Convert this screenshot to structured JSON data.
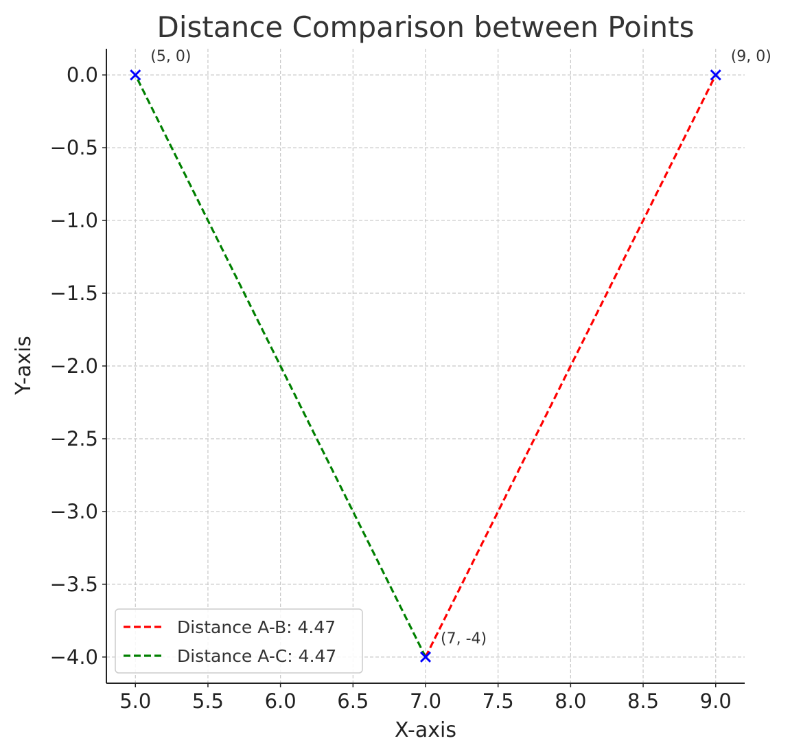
{
  "chart_data": {
    "type": "line",
    "title": "Distance Comparison between Points",
    "xlabel": "X-axis",
    "ylabel": "Y-axis",
    "xlim": [
      4.8,
      9.2
    ],
    "ylim": [
      -4.18,
      0.18
    ],
    "xticks": [
      5.0,
      5.5,
      6.0,
      6.5,
      7.0,
      7.5,
      8.0,
      8.5,
      9.0
    ],
    "xtick_labels": [
      "5.0",
      "5.5",
      "6.0",
      "6.5",
      "7.0",
      "7.5",
      "8.0",
      "8.5",
      "9.0"
    ],
    "yticks": [
      0.0,
      -0.5,
      -1.0,
      -1.5,
      -2.0,
      -2.5,
      -3.0,
      -3.5,
      -4.0
    ],
    "ytick_labels": [
      "0.0",
      "−0.5",
      "−1.0",
      "−1.5",
      "−2.0",
      "−2.5",
      "−3.0",
      "−3.5",
      "−4.0"
    ],
    "grid": true,
    "legend_position": "lower-left",
    "series": [
      {
        "name": "Distance A-B: 4.47",
        "color": "#ff0000",
        "style": "dashed",
        "x": [
          7,
          9
        ],
        "y": [
          -4,
          0
        ]
      },
      {
        "name": "Distance A-C: 4.47",
        "color": "#008000",
        "style": "dashed",
        "x": [
          7,
          5
        ],
        "y": [
          -4,
          0
        ]
      }
    ],
    "points": [
      {
        "x": 5,
        "y": 0,
        "label": "(5, 0)"
      },
      {
        "x": 9,
        "y": 0,
        "label": "(9, 0)"
      },
      {
        "x": 7,
        "y": -4,
        "label": "(7, -4)"
      }
    ],
    "marker_color": "#0000ff"
  }
}
